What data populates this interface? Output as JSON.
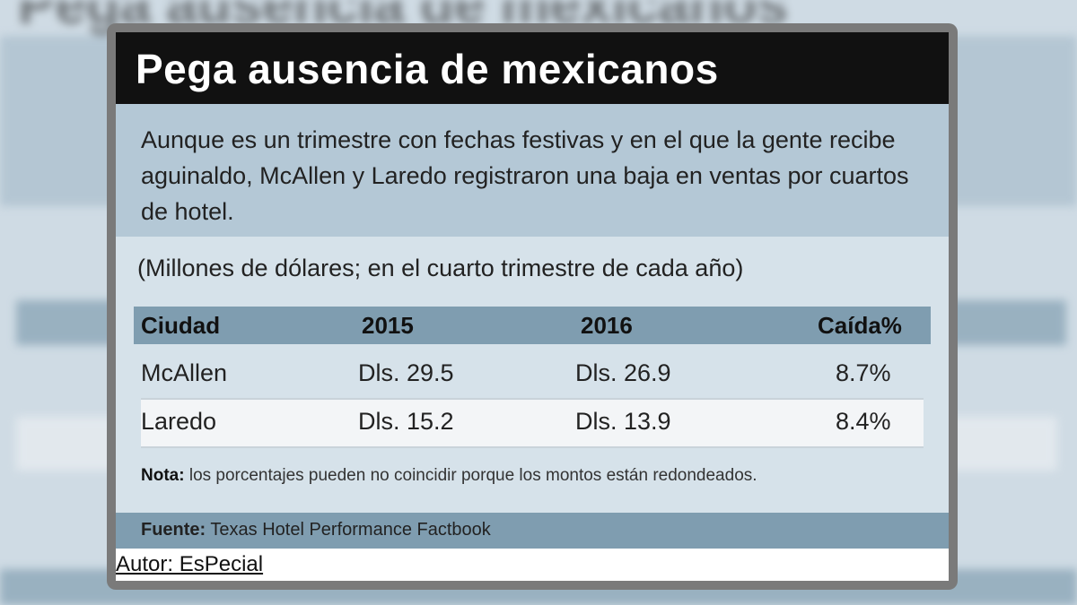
{
  "title": "Pega ausencia de mexicanos",
  "intro": "Aunque es un trimestre con fechas festivas y en el que la gente recibe aguinaldo, McAllen y Laredo registraron una baja en ventas por cuartos de hotel.",
  "units": "(Millones de dólares; en el cuarto trimestre de cada año)",
  "table": {
    "headers": [
      "Ciudad",
      "2015",
      "2016",
      "Caída%"
    ],
    "rows": [
      [
        "McAllen",
        "Dls. 29.5",
        "Dls. 26.9",
        "8.7%"
      ],
      [
        "Laredo",
        "Dls. 15.2",
        "Dls. 13.9",
        "8.4%"
      ]
    ]
  },
  "note": {
    "label": "Nota:",
    "text": " los porcentajes pueden no coincidir porque los montos están redondeados."
  },
  "source": {
    "label": "Fuente:",
    "text": " Texas Hotel Performance Factbook"
  },
  "author": "Autor: EsPecial",
  "colors": {
    "title_bar": "#111111",
    "intro_band": "#b4c8d6",
    "table_header": "#7f9db0",
    "background": "#d6e2ea"
  }
}
